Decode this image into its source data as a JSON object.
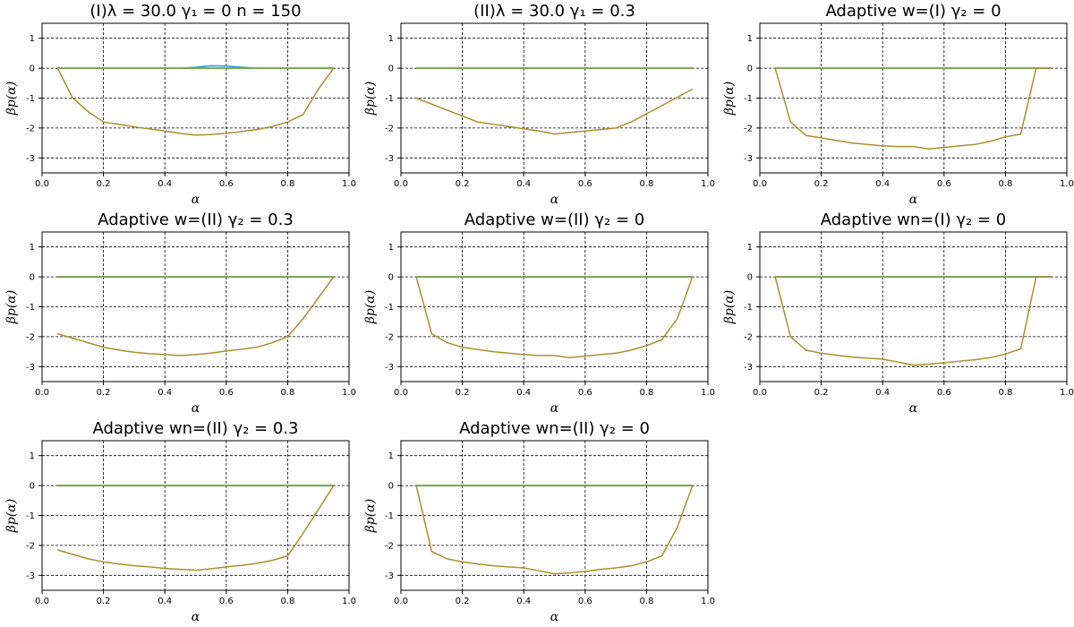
{
  "chart_data": [
    {
      "type": "line",
      "title": "(I)λ = 30.0    γ₁ = 0    n = 150",
      "xlabel": "α",
      "ylabel": "βp(α)",
      "xlim": [
        0,
        1
      ],
      "ylim": [
        -3.5,
        1.5
      ],
      "xticks": [
        "0.0",
        "0.2",
        "0.4",
        "0.6",
        "0.8",
        "1.0"
      ],
      "yticks": [
        "1",
        "0",
        "-1",
        "-2",
        "-3"
      ],
      "grid": true,
      "series": [
        {
          "color": "#1f9bd6",
          "x": [
            0.05,
            0.45,
            0.5,
            0.55,
            0.6,
            0.65,
            0.7,
            0.95
          ],
          "y": [
            0,
            0,
            0.03,
            0.08,
            0.07,
            0.03,
            0,
            0
          ]
        },
        {
          "color": "#7ea24c",
          "x": [
            0.05,
            0.95
          ],
          "y": [
            0,
            0
          ]
        },
        {
          "color": "#a8902c",
          "x": [
            0.05,
            0.1,
            0.15,
            0.2,
            0.25,
            0.3,
            0.35,
            0.4,
            0.45,
            0.5,
            0.55,
            0.6,
            0.65,
            0.7,
            0.75,
            0.8,
            0.85,
            0.9,
            0.95
          ],
          "y": [
            0,
            -1.0,
            -1.45,
            -1.8,
            -1.88,
            -1.96,
            -2.03,
            -2.1,
            -2.18,
            -2.24,
            -2.22,
            -2.18,
            -2.12,
            -2.05,
            -1.95,
            -1.8,
            -1.55,
            -0.7,
            0
          ]
        }
      ]
    },
    {
      "type": "line",
      "title": "(II)λ = 30.0    γ₁ = 0.3",
      "xlabel": "α",
      "ylabel": "βp(α)",
      "xlim": [
        0,
        1
      ],
      "ylim": [
        -3.5,
        1.5
      ],
      "xticks": [
        "0.0",
        "0.2",
        "0.4",
        "0.6",
        "0.8",
        "1.0"
      ],
      "yticks": [
        "1",
        "0",
        "-1",
        "-2",
        "-3"
      ],
      "grid": true,
      "series": [
        {
          "color": "#1f9bd6",
          "x": [
            0.05,
            0.95
          ],
          "y": [
            0,
            0
          ]
        },
        {
          "color": "#7ea24c",
          "x": [
            0.05,
            0.95
          ],
          "y": [
            0,
            0
          ]
        },
        {
          "color": "#a8902c",
          "x": [
            0.05,
            0.15,
            0.25,
            0.35,
            0.45,
            0.5,
            0.55,
            0.65,
            0.7,
            0.75,
            0.85,
            0.95
          ],
          "y": [
            -1.0,
            -1.4,
            -1.8,
            -1.95,
            -2.1,
            -2.2,
            -2.15,
            -2.05,
            -2.0,
            -1.8,
            -1.25,
            -0.7
          ]
        }
      ]
    },
    {
      "type": "line",
      "title": "Adaptive w=(I) γ₂ = 0",
      "xlabel": "α",
      "ylabel": "βp(α)",
      "xlim": [
        0,
        1
      ],
      "ylim": [
        -3.5,
        1.5
      ],
      "xticks": [
        "0.0",
        "0.2",
        "0.4",
        "0.6",
        "0.8",
        "1.0"
      ],
      "yticks": [
        "1",
        "0",
        "-1",
        "-2",
        "-3"
      ],
      "grid": true,
      "series": [
        {
          "color": "#1f9bd6",
          "x": [
            0.05,
            0.95
          ],
          "y": [
            0,
            0
          ]
        },
        {
          "color": "#7ea24c",
          "x": [
            0.05,
            0.95
          ],
          "y": [
            0,
            0
          ]
        },
        {
          "color": "#a8902c",
          "x": [
            0.05,
            0.1,
            0.15,
            0.2,
            0.25,
            0.3,
            0.35,
            0.4,
            0.45,
            0.5,
            0.55,
            0.6,
            0.65,
            0.7,
            0.75,
            0.8,
            0.85,
            0.9,
            0.95
          ],
          "y": [
            0,
            -1.8,
            -2.25,
            -2.33,
            -2.42,
            -2.5,
            -2.55,
            -2.6,
            -2.62,
            -2.62,
            -2.7,
            -2.65,
            -2.6,
            -2.55,
            -2.45,
            -2.3,
            -2.2,
            0,
            0
          ]
        }
      ]
    },
    {
      "type": "line",
      "title": "Adaptive w=(II) γ₂ = 0.3",
      "xlabel": "α",
      "ylabel": "βp(α)",
      "xlim": [
        0,
        1
      ],
      "ylim": [
        -3.5,
        1.5
      ],
      "xticks": [
        "0.0",
        "0.2",
        "0.4",
        "0.6",
        "0.8",
        "1.0"
      ],
      "yticks": [
        "1",
        "0",
        "-1",
        "-2",
        "-3"
      ],
      "grid": true,
      "series": [
        {
          "color": "#1f9bd6",
          "x": [
            0.05,
            0.95
          ],
          "y": [
            0,
            0
          ]
        },
        {
          "color": "#7ea24c",
          "x": [
            0.05,
            0.95
          ],
          "y": [
            0,
            0
          ]
        },
        {
          "color": "#a8902c",
          "x": [
            0.05,
            0.1,
            0.15,
            0.2,
            0.25,
            0.3,
            0.35,
            0.4,
            0.45,
            0.5,
            0.55,
            0.6,
            0.65,
            0.7,
            0.75,
            0.8,
            0.85,
            0.9,
            0.95
          ],
          "y": [
            -1.9,
            -2.05,
            -2.2,
            -2.35,
            -2.45,
            -2.52,
            -2.57,
            -2.6,
            -2.63,
            -2.6,
            -2.55,
            -2.48,
            -2.42,
            -2.35,
            -2.2,
            -2.0,
            -1.4,
            -0.7,
            0
          ]
        }
      ]
    },
    {
      "type": "line",
      "title": "Adaptive w=(II) γ₂ = 0",
      "xlabel": "α",
      "ylabel": "βp(α)",
      "xlim": [
        0,
        1
      ],
      "ylim": [
        -3.5,
        1.5
      ],
      "xticks": [
        "0.0",
        "0.2",
        "0.4",
        "0.6",
        "0.8",
        "1.0"
      ],
      "yticks": [
        "1",
        "0",
        "-1",
        "-2",
        "-3"
      ],
      "grid": true,
      "series": [
        {
          "color": "#1f9bd6",
          "x": [
            0.05,
            0.95
          ],
          "y": [
            0,
            0
          ]
        },
        {
          "color": "#7ea24c",
          "x": [
            0.05,
            0.95
          ],
          "y": [
            0,
            0
          ]
        },
        {
          "color": "#a8902c",
          "x": [
            0.05,
            0.1,
            0.15,
            0.2,
            0.25,
            0.3,
            0.35,
            0.4,
            0.45,
            0.5,
            0.55,
            0.6,
            0.65,
            0.7,
            0.75,
            0.8,
            0.85,
            0.9,
            0.95
          ],
          "y": [
            0,
            -1.9,
            -2.2,
            -2.35,
            -2.43,
            -2.5,
            -2.55,
            -2.6,
            -2.63,
            -2.63,
            -2.7,
            -2.65,
            -2.6,
            -2.55,
            -2.45,
            -2.3,
            -2.1,
            -1.4,
            0
          ]
        }
      ]
    },
    {
      "type": "line",
      "title": "Adaptive wn=(I) γ₂ = 0",
      "xlabel": "α",
      "ylabel": "βp(α)",
      "xlim": [
        0,
        1
      ],
      "ylim": [
        -3.5,
        1.5
      ],
      "xticks": [
        "0.0",
        "0.2",
        "0.4",
        "0.6",
        "0.8",
        "1.0"
      ],
      "yticks": [
        "1",
        "0",
        "-1",
        "-2",
        "-3"
      ],
      "grid": true,
      "series": [
        {
          "color": "#1f9bd6",
          "x": [
            0.05,
            0.95
          ],
          "y": [
            0,
            0
          ]
        },
        {
          "color": "#7ea24c",
          "x": [
            0.05,
            0.95
          ],
          "y": [
            0,
            0
          ]
        },
        {
          "color": "#a8902c",
          "x": [
            0.05,
            0.1,
            0.15,
            0.2,
            0.25,
            0.3,
            0.35,
            0.4,
            0.45,
            0.5,
            0.55,
            0.6,
            0.65,
            0.7,
            0.75,
            0.8,
            0.85,
            0.9,
            0.95
          ],
          "y": [
            0,
            -2.0,
            -2.45,
            -2.55,
            -2.62,
            -2.68,
            -2.72,
            -2.75,
            -2.85,
            -2.95,
            -2.92,
            -2.87,
            -2.82,
            -2.77,
            -2.7,
            -2.58,
            -2.4,
            0,
            0
          ]
        }
      ]
    },
    {
      "type": "line",
      "title": "Adaptive wn=(II) γ₂ = 0.3",
      "xlabel": "α",
      "ylabel": "βp(α)",
      "xlim": [
        0,
        1
      ],
      "ylim": [
        -3.5,
        1.5
      ],
      "xticks": [
        "0.0",
        "0.2",
        "0.4",
        "0.6",
        "0.8",
        "1.0"
      ],
      "yticks": [
        "1",
        "0",
        "-1",
        "-2",
        "-3"
      ],
      "grid": true,
      "series": [
        {
          "color": "#1f9bd6",
          "x": [
            0.05,
            0.95
          ],
          "y": [
            0,
            0
          ]
        },
        {
          "color": "#7ea24c",
          "x": [
            0.05,
            0.95
          ],
          "y": [
            0,
            0
          ]
        },
        {
          "color": "#a8902c",
          "x": [
            0.05,
            0.1,
            0.15,
            0.2,
            0.25,
            0.3,
            0.35,
            0.4,
            0.45,
            0.5,
            0.55,
            0.6,
            0.65,
            0.7,
            0.75,
            0.8,
            0.85,
            0.9,
            0.95
          ],
          "y": [
            -2.15,
            -2.3,
            -2.45,
            -2.55,
            -2.62,
            -2.68,
            -2.72,
            -2.77,
            -2.8,
            -2.83,
            -2.78,
            -2.72,
            -2.67,
            -2.6,
            -2.5,
            -2.35,
            -1.6,
            -0.8,
            0
          ]
        }
      ]
    },
    {
      "type": "line",
      "title": "Adaptive wn=(II) γ₂ = 0",
      "xlabel": "α",
      "ylabel": "βp(α)",
      "xlim": [
        0,
        1
      ],
      "ylim": [
        -3.5,
        1.5
      ],
      "xticks": [
        "0.0",
        "0.2",
        "0.4",
        "0.6",
        "0.8",
        "1.0"
      ],
      "yticks": [
        "1",
        "0",
        "-1",
        "-2",
        "-3"
      ],
      "grid": true,
      "series": [
        {
          "color": "#1f9bd6",
          "x": [
            0.05,
            0.95
          ],
          "y": [
            0,
            0
          ]
        },
        {
          "color": "#7ea24c",
          "x": [
            0.05,
            0.95
          ],
          "y": [
            0,
            0
          ]
        },
        {
          "color": "#a8902c",
          "x": [
            0.05,
            0.1,
            0.15,
            0.2,
            0.25,
            0.3,
            0.35,
            0.4,
            0.45,
            0.5,
            0.55,
            0.6,
            0.65,
            0.7,
            0.75,
            0.8,
            0.85,
            0.9,
            0.95
          ],
          "y": [
            0,
            -2.2,
            -2.45,
            -2.55,
            -2.62,
            -2.68,
            -2.72,
            -2.75,
            -2.85,
            -2.95,
            -2.92,
            -2.87,
            -2.8,
            -2.75,
            -2.68,
            -2.55,
            -2.35,
            -1.4,
            0
          ]
        }
      ]
    }
  ]
}
